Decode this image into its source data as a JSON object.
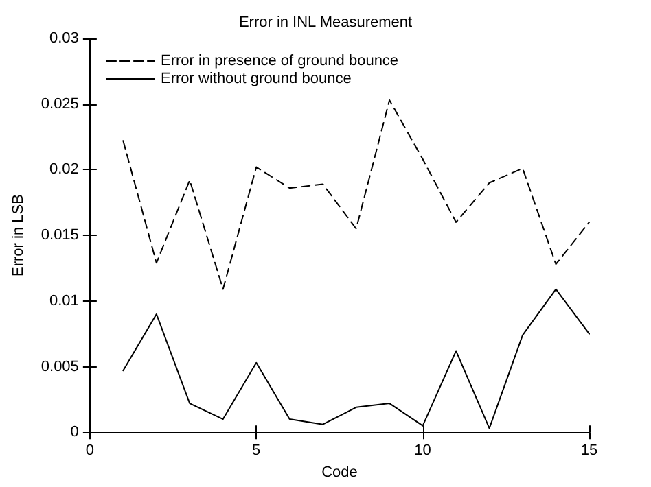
{
  "chart_data": {
    "type": "line",
    "title": "Error in INL Measurement",
    "xlabel": "Code",
    "ylabel": "Error in LSB",
    "x": [
      1,
      2,
      3,
      4,
      5,
      6,
      7,
      8,
      9,
      10,
      11,
      12,
      13,
      14,
      15
    ],
    "series": [
      {
        "name": "Error in presence of ground bounce",
        "color": "#000000",
        "line_style": "dashed",
        "values": [
          0.0222,
          0.0129,
          0.0192,
          0.0109,
          0.0202,
          0.0186,
          0.0189,
          0.0155,
          0.0253,
          0.0208,
          0.016,
          0.019,
          0.0201,
          0.0128,
          0.016
        ]
      },
      {
        "name": "Error without ground bounce",
        "color": "#000000",
        "line_style": "solid",
        "values": [
          0.0047,
          0.009,
          0.0022,
          0.001,
          0.0053,
          0.001,
          0.0006,
          0.0019,
          0.0022,
          0.0005,
          0.0062,
          0.0003,
          0.0074,
          0.0109,
          0.0075
        ]
      }
    ],
    "xlim": [
      0,
      15
    ],
    "xticks": [
      0,
      5,
      10,
      15
    ],
    "ylim": [
      0,
      0.03
    ],
    "yticks": [
      0,
      0.005,
      0.01,
      0.015,
      0.02,
      0.025,
      0.03
    ],
    "grid": false,
    "legend": "top left",
    "marker": "none"
  }
}
